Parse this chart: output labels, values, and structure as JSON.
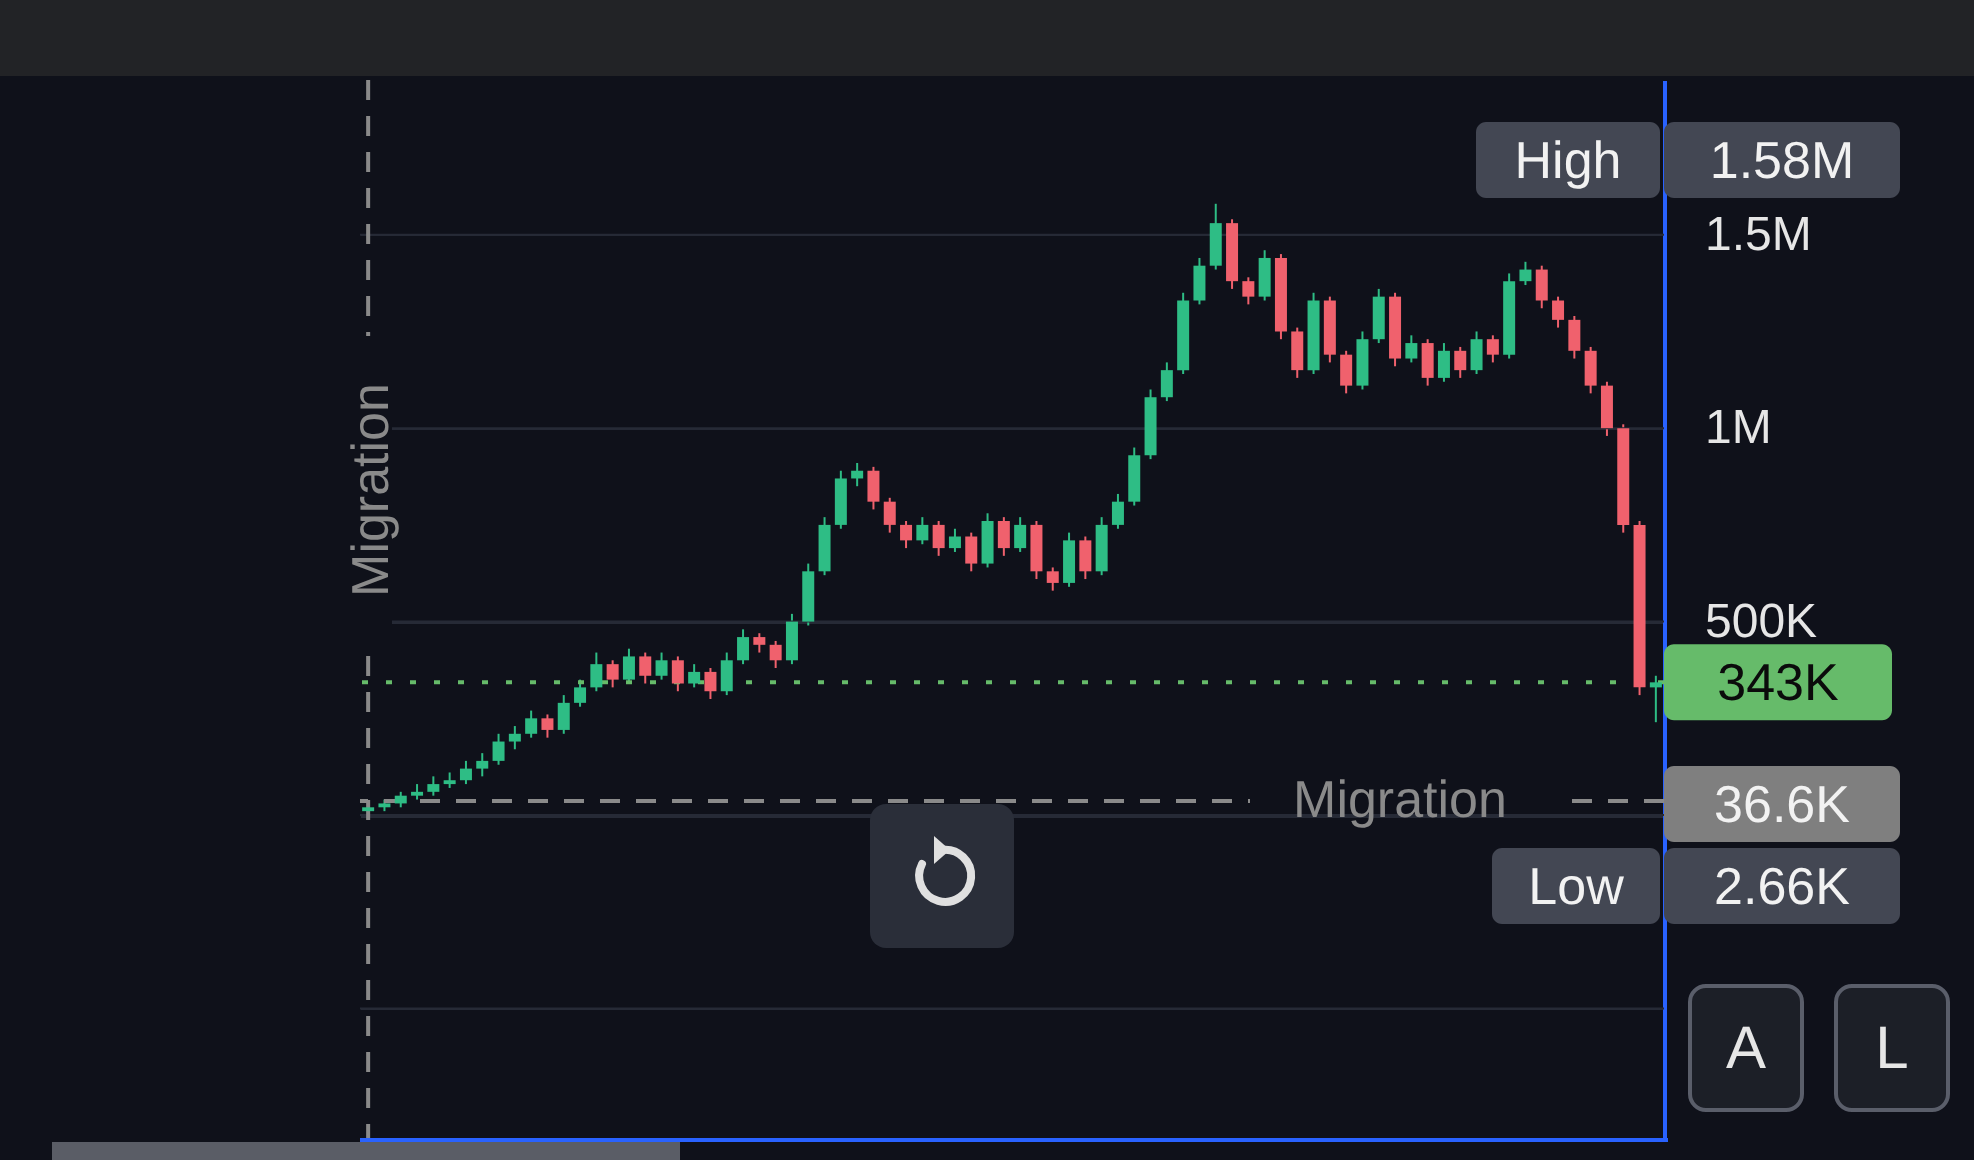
{
  "chart_data": {
    "type": "candlestick",
    "categories": [
      null,
      null,
      null,
      null,
      null,
      null,
      null,
      null,
      null,
      null,
      null,
      null,
      null,
      null,
      null,
      null,
      null,
      null,
      null,
      null,
      null,
      null,
      null,
      null,
      null,
      null,
      null,
      null,
      null,
      null,
      null,
      null,
      null,
      null,
      null,
      null,
      null,
      null,
      null,
      null,
      null,
      null,
      null,
      null,
      null,
      null,
      null,
      null,
      null,
      null,
      null,
      null,
      null,
      null,
      null,
      null,
      null,
      null,
      null,
      null,
      null,
      null,
      null,
      null,
      null,
      null,
      null,
      null,
      null,
      null,
      null,
      null,
      null,
      null,
      null,
      null,
      null,
      null,
      null,
      null
    ],
    "ohlc": [
      [
        10000,
        30000,
        2660,
        20000
      ],
      [
        20000,
        40000,
        10000,
        30000
      ],
      [
        30000,
        60000,
        20000,
        50000
      ],
      [
        50000,
        80000,
        40000,
        60000
      ],
      [
        60000,
        100000,
        50000,
        80000
      ],
      [
        80000,
        110000,
        70000,
        90000
      ],
      [
        90000,
        140000,
        80000,
        120000
      ],
      [
        120000,
        160000,
        100000,
        140000
      ],
      [
        140000,
        210000,
        130000,
        190000
      ],
      [
        190000,
        230000,
        170000,
        210000
      ],
      [
        210000,
        270000,
        200000,
        250000
      ],
      [
        250000,
        260000,
        200000,
        220000
      ],
      [
        220000,
        310000,
        210000,
        290000
      ],
      [
        290000,
        350000,
        280000,
        330000
      ],
      [
        330000,
        420000,
        320000,
        390000
      ],
      [
        390000,
        400000,
        330000,
        350000
      ],
      [
        350000,
        430000,
        340000,
        410000
      ],
      [
        410000,
        420000,
        340000,
        360000
      ],
      [
        360000,
        420000,
        350000,
        400000
      ],
      [
        400000,
        410000,
        320000,
        340000
      ],
      [
        340000,
        390000,
        330000,
        370000
      ],
      [
        370000,
        380000,
        300000,
        320000
      ],
      [
        320000,
        420000,
        310000,
        400000
      ],
      [
        400000,
        480000,
        390000,
        460000
      ],
      [
        460000,
        470000,
        420000,
        440000
      ],
      [
        440000,
        450000,
        380000,
        400000
      ],
      [
        400000,
        520000,
        390000,
        500000
      ],
      [
        500000,
        650000,
        490000,
        630000
      ],
      [
        630000,
        770000,
        620000,
        750000
      ],
      [
        750000,
        890000,
        740000,
        870000
      ],
      [
        870000,
        910000,
        850000,
        890000
      ],
      [
        890000,
        900000,
        790000,
        810000
      ],
      [
        810000,
        820000,
        730000,
        750000
      ],
      [
        750000,
        760000,
        690000,
        710000
      ],
      [
        710000,
        770000,
        700000,
        750000
      ],
      [
        750000,
        760000,
        670000,
        690000
      ],
      [
        690000,
        740000,
        680000,
        720000
      ],
      [
        720000,
        730000,
        630000,
        650000
      ],
      [
        650000,
        780000,
        640000,
        760000
      ],
      [
        760000,
        770000,
        670000,
        690000
      ],
      [
        690000,
        770000,
        680000,
        750000
      ],
      [
        750000,
        760000,
        610000,
        630000
      ],
      [
        630000,
        640000,
        580000,
        600000
      ],
      [
        600000,
        730000,
        590000,
        710000
      ],
      [
        710000,
        720000,
        610000,
        630000
      ],
      [
        630000,
        770000,
        620000,
        750000
      ],
      [
        750000,
        830000,
        740000,
        810000
      ],
      [
        810000,
        950000,
        800000,
        930000
      ],
      [
        930000,
        1100000,
        920000,
        1080000
      ],
      [
        1080000,
        1170000,
        1070000,
        1150000
      ],
      [
        1150000,
        1350000,
        1140000,
        1330000
      ],
      [
        1330000,
        1440000,
        1320000,
        1420000
      ],
      [
        1420000,
        1580000,
        1410000,
        1530000
      ],
      [
        1530000,
        1540000,
        1360000,
        1380000
      ],
      [
        1380000,
        1390000,
        1320000,
        1340000
      ],
      [
        1340000,
        1460000,
        1330000,
        1440000
      ],
      [
        1440000,
        1450000,
        1230000,
        1250000
      ],
      [
        1250000,
        1260000,
        1130000,
        1150000
      ],
      [
        1150000,
        1350000,
        1140000,
        1330000
      ],
      [
        1330000,
        1340000,
        1170000,
        1190000
      ],
      [
        1190000,
        1200000,
        1090000,
        1110000
      ],
      [
        1110000,
        1250000,
        1100000,
        1230000
      ],
      [
        1230000,
        1360000,
        1220000,
        1340000
      ],
      [
        1340000,
        1350000,
        1160000,
        1180000
      ],
      [
        1180000,
        1240000,
        1170000,
        1220000
      ],
      [
        1220000,
        1230000,
        1110000,
        1130000
      ],
      [
        1130000,
        1220000,
        1120000,
        1200000
      ],
      [
        1200000,
        1210000,
        1130000,
        1150000
      ],
      [
        1150000,
        1250000,
        1140000,
        1230000
      ],
      [
        1230000,
        1240000,
        1170000,
        1190000
      ],
      [
        1190000,
        1400000,
        1180000,
        1380000
      ],
      [
        1380000,
        1430000,
        1370000,
        1410000
      ],
      [
        1410000,
        1420000,
        1310000,
        1330000
      ],
      [
        1330000,
        1340000,
        1260000,
        1280000
      ],
      [
        1280000,
        1290000,
        1180000,
        1200000
      ],
      [
        1200000,
        1210000,
        1090000,
        1110000
      ],
      [
        1110000,
        1120000,
        980000,
        1000000
      ],
      [
        1000000,
        1010000,
        730000,
        750000
      ],
      [
        750000,
        760000,
        310000,
        330000
      ],
      [
        330000,
        360000,
        240000,
        343000
      ]
    ],
    "colors": [
      "#2ebd85",
      "#2ebd85",
      "#2ebd85",
      "#2ebd85",
      "#2ebd85",
      "#2ebd85",
      "#2ebd85",
      "#2ebd85",
      "#2ebd85",
      "#2ebd85",
      "#2ebd85",
      "#f0616d",
      "#2ebd85",
      "#2ebd85",
      "#2ebd85",
      "#f0616d",
      "#2ebd85",
      "#f0616d",
      "#2ebd85",
      "#f0616d",
      "#2ebd85",
      "#f0616d",
      "#2ebd85",
      "#2ebd85",
      "#f0616d",
      "#f0616d",
      "#2ebd85",
      "#2ebd85",
      "#2ebd85",
      "#2ebd85",
      "#2ebd85",
      "#f0616d",
      "#f0616d",
      "#f0616d",
      "#2ebd85",
      "#f0616d",
      "#2ebd85",
      "#f0616d",
      "#2ebd85",
      "#f0616d",
      "#2ebd85",
      "#f0616d",
      "#f0616d",
      "#2ebd85",
      "#f0616d",
      "#2ebd85",
      "#2ebd85",
      "#2ebd85",
      "#2ebd85",
      "#2ebd85",
      "#2ebd85",
      "#2ebd85",
      "#2ebd85",
      "#f0616d",
      "#f0616d",
      "#2ebd85",
      "#f0616d",
      "#f0616d",
      "#2ebd85",
      "#f0616d",
      "#f0616d",
      "#2ebd85",
      "#2ebd85",
      "#f0616d",
      "#2ebd85",
      "#f0616d",
      "#2ebd85",
      "#f0616d",
      "#2ebd85",
      "#f0616d",
      "#2ebd85",
      "#2ebd85",
      "#f0616d",
      "#f0616d",
      "#f0616d",
      "#f0616d",
      "#f0616d",
      "#f0616d",
      "#f0616d",
      "#2ebd85"
    ],
    "ylim": [
      -840000,
      1900000
    ],
    "yticks": [
      {
        "value": -500000,
        "label": null
      },
      {
        "value": 0,
        "label": null
      },
      {
        "value": 500000,
        "label": "500K"
      },
      {
        "value": 1000000,
        "label": "1M"
      },
      {
        "value": 1500000,
        "label": "1.5M"
      }
    ],
    "tick_labels": "y",
    "grid": "y",
    "ref_lines": [
      {
        "axis": "y",
        "value": 36600,
        "label": "Migration",
        "color": "#8a8a8a",
        "line_style": "dashed"
      },
      {
        "axis": "y",
        "value": 343000,
        "label": "343K",
        "color": "#66bb6a",
        "line_style": "dotted"
      }
    ],
    "annotations": [
      "Migration",
      "High",
      "1.58M",
      "36.6K",
      "Low",
      "2.66K",
      "A",
      "L"
    ]
  }
}
